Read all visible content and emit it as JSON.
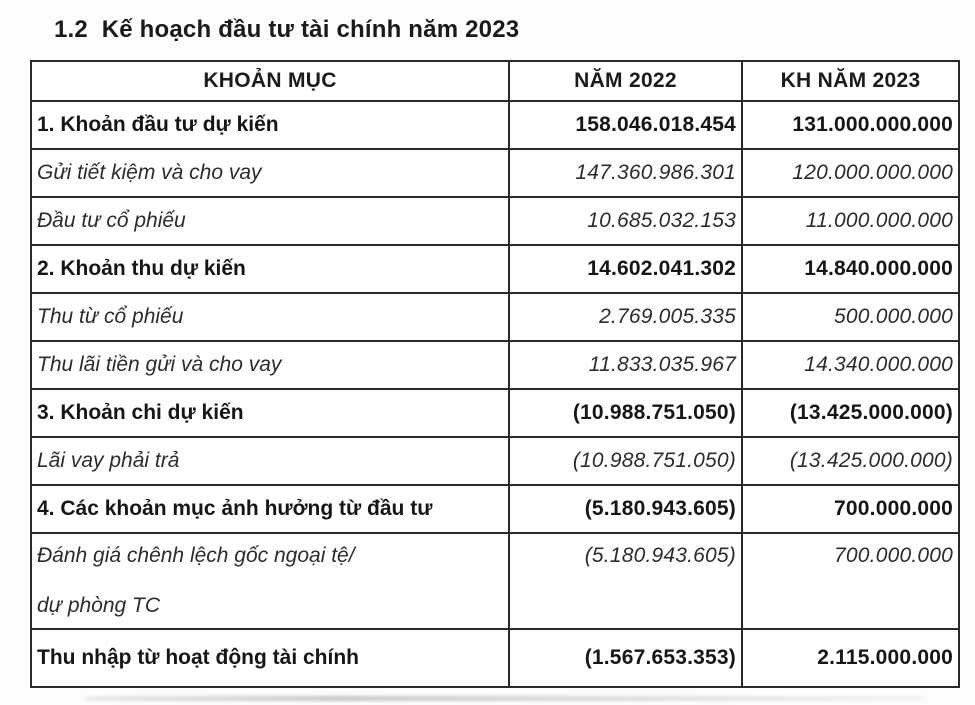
{
  "page": {
    "title": "1.2  Kế hoạch đầu tư tài chính năm 2023"
  },
  "table": {
    "columns": [
      "KHOẢN MỤC",
      "NĂM 2022",
      "KH NĂM 2023"
    ],
    "rows": [
      {
        "label": "1. Khoản đầu tư dự kiến",
        "y2022": "158.046.018.454",
        "kh2023": "131.000.000.000",
        "style": "bold"
      },
      {
        "label": "Gửi tiết kiệm và cho vay",
        "y2022": "147.360.986.301",
        "kh2023": "120.000.000.000",
        "style": "italic"
      },
      {
        "label": "Đầu tư cổ phiếu",
        "y2022": "10.685.032.153",
        "kh2023": "11.000.000.000",
        "style": "italic"
      },
      {
        "label": "2. Khoản thu dự kiến",
        "y2022": "14.602.041.302",
        "kh2023": "14.840.000.000",
        "style": "bold"
      },
      {
        "label": "Thu từ cổ phiếu",
        "y2022": "2.769.005.335",
        "kh2023": "500.000.000",
        "style": "italic"
      },
      {
        "label": "Thu lãi tiền gửi và cho vay",
        "y2022": "11.833.035.967",
        "kh2023": "14.340.000.000",
        "style": "italic"
      },
      {
        "label": "3. Khoản chi dự kiến",
        "y2022": "(10.988.751.050)",
        "kh2023": "(13.425.000.000)",
        "style": "bold"
      },
      {
        "label": "Lãi vay phải trả",
        "y2022": "(10.988.751.050)",
        "kh2023": "(13.425.000.000)",
        "style": "italic"
      },
      {
        "label": "4. Các khoản mục ảnh hưởng từ đầu tư",
        "y2022": "(5.180.943.605)",
        "kh2023": "700.000.000",
        "style": "bold"
      },
      {
        "label": "Đánh giá chênh lệch gốc ngoại tệ/ dự phòng TC",
        "label_lines": [
          "Đánh giá chênh lệch gốc ngoại tệ/",
          "dự phòng TC"
        ],
        "y2022": "(5.180.943.605)",
        "kh2023": "700.000.000",
        "style": "italic"
      },
      {
        "label": "Thu nhập từ hoạt động tài chính",
        "y2022": "(1.567.653.353)",
        "kh2023": "2.115.000.000",
        "style": "bold"
      }
    ]
  }
}
